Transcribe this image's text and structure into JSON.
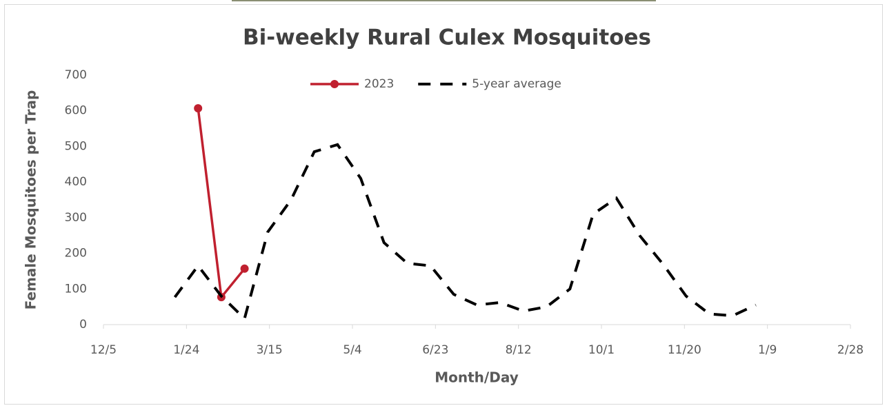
{
  "chart_data": {
    "type": "line",
    "title": "Bi-weekly Rural Culex Mosquitoes",
    "x_label": "Month/Day",
    "y_label": "Female Mosquitoes per Trap",
    "xlim": [
      0,
      450
    ],
    "xticks": [
      {
        "value": 0,
        "label": "12/5"
      },
      {
        "value": 50,
        "label": "1/24"
      },
      {
        "value": 100,
        "label": "3/15"
      },
      {
        "value": 150,
        "label": "5/4"
      },
      {
        "value": 200,
        "label": "6/23"
      },
      {
        "value": 250,
        "label": "8/12"
      },
      {
        "value": 300,
        "label": "10/1"
      },
      {
        "value": 350,
        "label": "11/20"
      },
      {
        "value": 400,
        "label": "1/9"
      },
      {
        "value": 450,
        "label": "2/28"
      }
    ],
    "ylim": [
      0,
      700
    ],
    "yticks": [
      0,
      100,
      200,
      300,
      400,
      500,
      600,
      700
    ],
    "legend": "top",
    "series": [
      {
        "name": "2023",
        "color": "#c0202f",
        "style": "solid",
        "markers": true,
        "x": [
          57,
          71,
          85
        ],
        "values": [
          607,
          77,
          157
        ]
      },
      {
        "name": "5-year average",
        "color": "#000000",
        "style": "dashed",
        "markers": false,
        "x": [
          43,
          57,
          71,
          85,
          99,
          113,
          127,
          141,
          155,
          169,
          183,
          197,
          211,
          225,
          239,
          253,
          267,
          281,
          295,
          309,
          323,
          337,
          351,
          365,
          379,
          393
        ],
        "values": [
          77,
          165,
          80,
          17,
          260,
          350,
          485,
          505,
          410,
          230,
          172,
          165,
          85,
          55,
          62,
          38,
          50,
          100,
          310,
          355,
          250,
          170,
          80,
          30,
          25,
          55
        ]
      }
    ]
  }
}
